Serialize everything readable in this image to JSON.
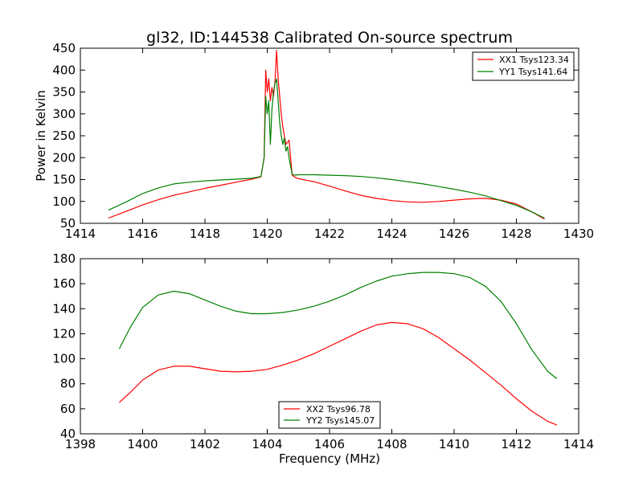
{
  "colors": {
    "xx": "#ff0000",
    "yy": "#008000",
    "frame": "#000000"
  },
  "chart_data": [
    {
      "type": "line",
      "title": "gl32, ID:144538 Calibrated On-source spectrum",
      "xlabel": "",
      "ylabel": "Power in Kelvin",
      "xlim": [
        1414,
        1430
      ],
      "ylim": [
        50,
        450
      ],
      "xticks": [
        1414,
        1416,
        1418,
        1420,
        1422,
        1424,
        1426,
        1428,
        1430
      ],
      "yticks": [
        50,
        100,
        150,
        200,
        250,
        300,
        350,
        400,
        450
      ],
      "legend_position": "top-right",
      "series": [
        {
          "name": "XX1 Tsys123.34",
          "color": "#ff0000",
          "x": [
            1414.9,
            1415.5,
            1416,
            1416.5,
            1417,
            1417.5,
            1418,
            1418.5,
            1419,
            1419.5,
            1419.8,
            1419.9,
            1419.95,
            1420.0,
            1420.05,
            1420.1,
            1420.15,
            1420.2,
            1420.25,
            1420.3,
            1420.35,
            1420.4,
            1420.45,
            1420.5,
            1420.55,
            1420.6,
            1420.65,
            1420.7,
            1420.75,
            1420.8,
            1420.9,
            1421.0,
            1421.5,
            1422,
            1422.5,
            1423,
            1423.5,
            1424,
            1424.5,
            1425,
            1425.5,
            1426,
            1426.5,
            1427,
            1427.5,
            1428,
            1428.5,
            1428.9
          ],
          "values": [
            62,
            78,
            92,
            104,
            114,
            122,
            130,
            137,
            144,
            151,
            156,
            200,
            400,
            350,
            380,
            330,
            360,
            340,
            375,
            445,
            380,
            340,
            300,
            270,
            250,
            230,
            235,
            240,
            200,
            160,
            155,
            152,
            145,
            135,
            124,
            114,
            107,
            102,
            99,
            98,
            100,
            103,
            106,
            107,
            103,
            94,
            76,
            60
          ]
        },
        {
          "name": "YY1 Tsys141.64",
          "color": "#008000",
          "x": [
            1414.9,
            1415.5,
            1416,
            1416.5,
            1417,
            1417.5,
            1418,
            1418.5,
            1419,
            1419.5,
            1419.8,
            1419.9,
            1419.95,
            1420.0,
            1420.05,
            1420.1,
            1420.15,
            1420.2,
            1420.25,
            1420.3,
            1420.35,
            1420.4,
            1420.45,
            1420.5,
            1420.55,
            1420.6,
            1420.65,
            1420.7,
            1420.75,
            1420.8,
            1420.9,
            1421.0,
            1421.5,
            1422,
            1422.5,
            1423,
            1423.5,
            1424,
            1424.5,
            1425,
            1425.5,
            1426,
            1426.5,
            1427,
            1427.5,
            1428,
            1428.5,
            1428.9
          ],
          "values": [
            80,
            100,
            118,
            131,
            140,
            144,
            147,
            149,
            151,
            153,
            157,
            200,
            340,
            300,
            330,
            230,
            310,
            350,
            370,
            380,
            330,
            280,
            250,
            230,
            245,
            215,
            225,
            200,
            180,
            162,
            160,
            161,
            161,
            160,
            159,
            157,
            154,
            150,
            145,
            140,
            134,
            128,
            121,
            113,
            102,
            91,
            76,
            62
          ]
        }
      ]
    },
    {
      "type": "line",
      "title": "",
      "xlabel": "Frequency (MHz)",
      "ylabel": "",
      "xlim": [
        1398,
        1414
      ],
      "ylim": [
        40,
        180
      ],
      "xticks": [
        1398,
        1400,
        1402,
        1404,
        1406,
        1408,
        1410,
        1412,
        1414
      ],
      "yticks": [
        40,
        60,
        80,
        100,
        120,
        140,
        160,
        180
      ],
      "legend_position": "bottom-center",
      "series": [
        {
          "name": "XX2 Tsys96.78",
          "color": "#ff0000",
          "x": [
            1399.25,
            1399.6,
            1400,
            1400.5,
            1401,
            1401.5,
            1402,
            1402.5,
            1403,
            1403.5,
            1404,
            1404.5,
            1405,
            1405.5,
            1406,
            1406.5,
            1407,
            1407.5,
            1408,
            1408.5,
            1409,
            1409.5,
            1410,
            1410.5,
            1411,
            1411.5,
            1412,
            1412.5,
            1413,
            1413.3
          ],
          "values": [
            65,
            73,
            83,
            91,
            94,
            94,
            92,
            90,
            89.5,
            90,
            91.5,
            95,
            99,
            104,
            110,
            116,
            122,
            127,
            129,
            128,
            124,
            117,
            108,
            99,
            89,
            79,
            68,
            58,
            50,
            47
          ]
        },
        {
          "name": "YY2 Tsys145.07",
          "color": "#008000",
          "x": [
            1399.25,
            1399.6,
            1400,
            1400.5,
            1401,
            1401.5,
            1402,
            1402.5,
            1403,
            1403.5,
            1404,
            1404.5,
            1405,
            1405.5,
            1406,
            1406.5,
            1407,
            1407.5,
            1408,
            1408.5,
            1409,
            1409.5,
            1410,
            1410.5,
            1411,
            1411.5,
            1412,
            1412.5,
            1413,
            1413.3
          ],
          "values": [
            108,
            125,
            141,
            151,
            154,
            152,
            147,
            142,
            138,
            136,
            136,
            137,
            139,
            142,
            146,
            151,
            157,
            162,
            166,
            168,
            169,
            169,
            168,
            165,
            158,
            146,
            128,
            107,
            90,
            84
          ]
        }
      ]
    }
  ]
}
